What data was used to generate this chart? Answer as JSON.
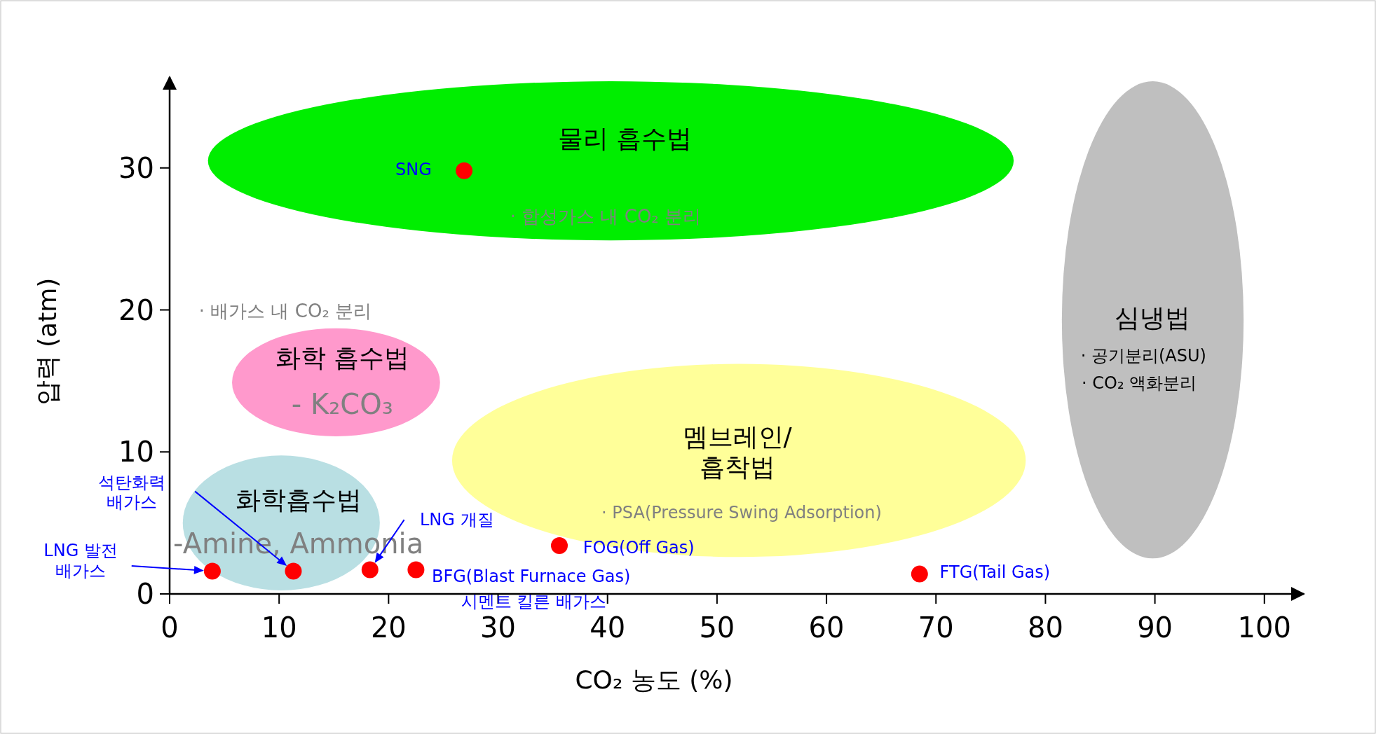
{
  "chart_data": {
    "type": "scatter",
    "xlabel": "CO₂ 농도 (%)",
    "ylabel": "압력 (atm)",
    "xlim": [
      0,
      103.6
    ],
    "ylim": [
      0,
      36.4
    ],
    "xticks": [
      0,
      10,
      20,
      30,
      40,
      50,
      60,
      70,
      80,
      90,
      100
    ],
    "yticks": [
      0,
      10,
      20,
      30
    ],
    "grid": false,
    "marker": "circle",
    "series": [
      {
        "color": "#ff0000",
        "x": [
          26.9,
          3.9,
          11.3,
          18.3,
          22.5,
          35.6,
          68.5
        ],
        "values": [
          29.8,
          1.6,
          1.6,
          1.7,
          1.7,
          3.4,
          1.4
        ]
      }
    ],
    "annotations": [
      "물리 흡수법",
      "· 합성가스 내 CO₂ 분리",
      "· 배가스 내 CO₂ 분리",
      "화학 흡수법",
      "- K₂CO₃",
      "화학흡수법",
      "-Amine, Ammonia",
      "멤브레인/\n흡착법",
      "· PSA(Pressure Swing Adsorption)",
      "심냉법",
      "· 공기분리(ASU)",
      "· CO₂ 액화분리",
      {
        "text": "SNG",
        "x": 26.9,
        "y": 29.8
      },
      "LNG 발전\n배가스",
      "석탄화력\n배가스",
      "LNG 개질",
      {
        "text": "BFG(Blast Furnace Gas)",
        "x": 22.5,
        "y": 1.7
      },
      {
        "text": "시멘트 킬른 배가스",
        "x": 22.5,
        "y": 1.7
      },
      {
        "text": "FOG(Off Gas)",
        "x": 35.6,
        "y": 3.4
      },
      {
        "text": "FTG(Tail Gas)",
        "x": 68.5,
        "y": 1.4
      }
    ]
  }
}
